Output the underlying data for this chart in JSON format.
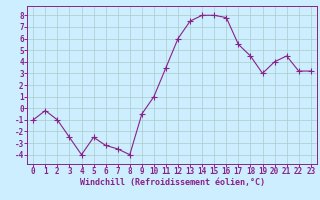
{
  "x": [
    0,
    1,
    2,
    3,
    4,
    5,
    6,
    7,
    8,
    9,
    10,
    11,
    12,
    13,
    14,
    15,
    16,
    17,
    18,
    19,
    20,
    21,
    22,
    23
  ],
  "y": [
    -1.0,
    -0.2,
    -1.0,
    -2.5,
    -4.0,
    -2.5,
    -3.2,
    -3.5,
    -4.0,
    -0.5,
    1.0,
    3.5,
    6.0,
    7.5,
    8.0,
    8.0,
    7.8,
    5.5,
    4.5,
    3.0,
    4.0,
    4.5,
    3.2,
    3.2
  ],
  "line_color": "#882288",
  "marker": "+",
  "marker_size": 4,
  "bg_color": "#cceeff",
  "grid_color": "#aacccc",
  "xlabel": "Windchill (Refroidissement éolien,°C)",
  "xlim": [
    -0.5,
    23.5
  ],
  "ylim": [
    -4.8,
    8.8
  ],
  "yticks": [
    -4,
    -3,
    -2,
    -1,
    0,
    1,
    2,
    3,
    4,
    5,
    6,
    7,
    8
  ],
  "xticks": [
    0,
    1,
    2,
    3,
    4,
    5,
    6,
    7,
    8,
    9,
    10,
    11,
    12,
    13,
    14,
    15,
    16,
    17,
    18,
    19,
    20,
    21,
    22,
    23
  ],
  "tick_color": "#882288",
  "label_fontsize": 6.0,
  "tick_fontsize": 5.5,
  "linewidth": 0.8
}
